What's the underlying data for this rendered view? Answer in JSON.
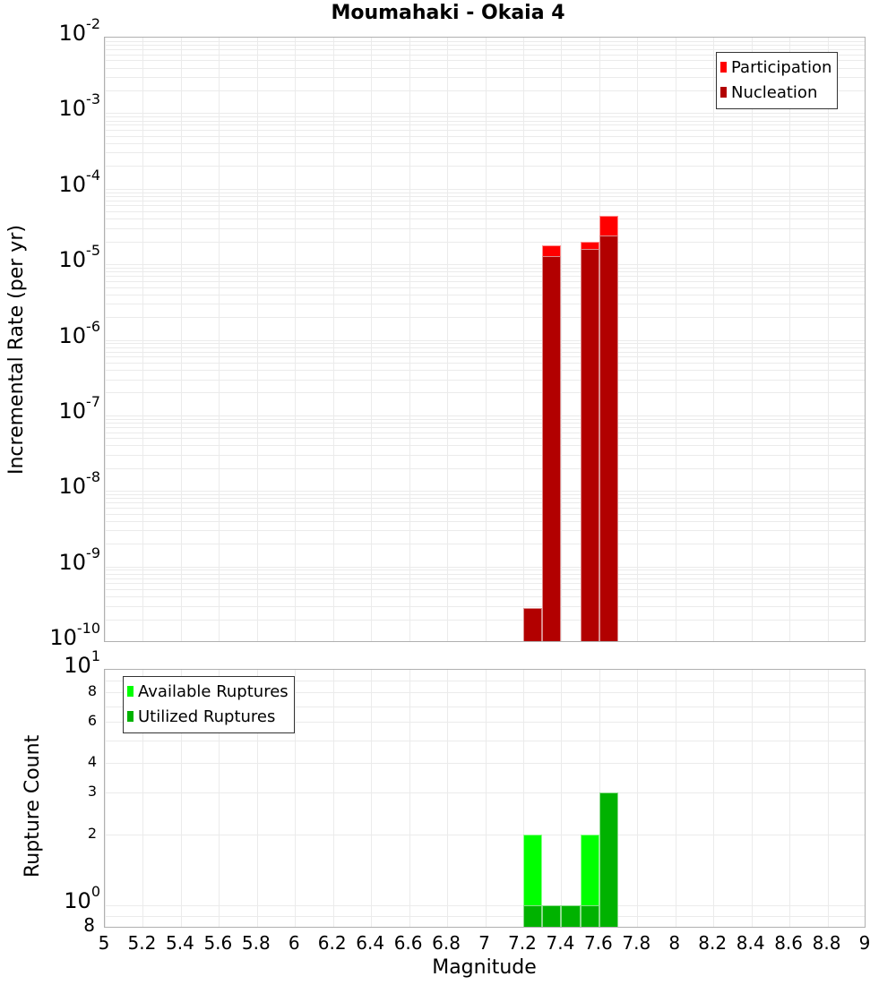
{
  "title": "Moumahaki - Okaia 4",
  "colors": {
    "participation": "#ff0000",
    "nucleation": "#b20000",
    "available": "#00ff00",
    "utilized": "#00b200",
    "grid": "#ebebeb",
    "frame": "#b0b0b0"
  },
  "top_plot": {
    "ylabel": "Incremental Rate (per yr)",
    "yticks": [
      {
        "base": "10",
        "exp": "-2"
      },
      {
        "base": "10",
        "exp": "-3"
      },
      {
        "base": "10",
        "exp": "-4"
      },
      {
        "base": "10",
        "exp": "-5"
      },
      {
        "base": "10",
        "exp": "-6"
      },
      {
        "base": "10",
        "exp": "-7"
      },
      {
        "base": "10",
        "exp": "-8"
      },
      {
        "base": "10",
        "exp": "-9"
      },
      {
        "base": "10",
        "exp": "-10"
      }
    ],
    "legend": [
      "Participation",
      "Nucleation"
    ]
  },
  "bottom_plot": {
    "ylabel": "Rupture Count",
    "yticks_major": [
      {
        "base": "10",
        "exp": "1"
      },
      {
        "base": "10",
        "exp": "0"
      }
    ],
    "yticks_minor": [
      "8",
      "6",
      "4",
      "3",
      "2",
      "8"
    ],
    "legend": [
      "Available Ruptures",
      "Utilized Ruptures"
    ]
  },
  "x_axis": {
    "label": "Magnitude",
    "ticks": [
      "5",
      "5.2",
      "5.4",
      "5.6",
      "5.8",
      "6",
      "6.2",
      "6.4",
      "6.6",
      "6.8",
      "7",
      "7.2",
      "7.4",
      "7.6",
      "7.8",
      "8",
      "8.2",
      "8.4",
      "8.6",
      "8.8",
      "9"
    ]
  },
  "chart_data": [
    {
      "type": "bar",
      "title": "Moumahaki - Okaia 4",
      "xlabel": "Magnitude",
      "ylabel": "Incremental Rate (per yr)",
      "yscale": "log",
      "xlim": [
        5,
        9
      ],
      "ylim": [
        1e-10,
        0.01
      ],
      "grid": true,
      "legend_position": "top-right",
      "categories": [
        7.25,
        7.35,
        7.55,
        7.65
      ],
      "series": [
        {
          "name": "Participation",
          "color": "#ff0000",
          "values": [
            2.8e-10,
            1.8e-05,
            2e-05,
            4.4e-05
          ]
        },
        {
          "name": "Nucleation",
          "color": "#b20000",
          "values": [
            2.8e-10,
            1.3e-05,
            1.6e-05,
            2.4e-05
          ]
        }
      ]
    },
    {
      "type": "bar",
      "xlabel": "Magnitude",
      "ylabel": "Rupture Count",
      "yscale": "log",
      "xlim": [
        5,
        9
      ],
      "ylim": [
        0.8,
        10
      ],
      "grid": true,
      "legend_position": "top-left",
      "categories": [
        7.25,
        7.35,
        7.45,
        7.55,
        7.65
      ],
      "series": [
        {
          "name": "Available Ruptures",
          "color": "#00ff00",
          "values": [
            2,
            1,
            1,
            2,
            3
          ]
        },
        {
          "name": "Utilized Ruptures",
          "color": "#00b200",
          "values": [
            1,
            1,
            1,
            1,
            3
          ]
        }
      ]
    }
  ]
}
